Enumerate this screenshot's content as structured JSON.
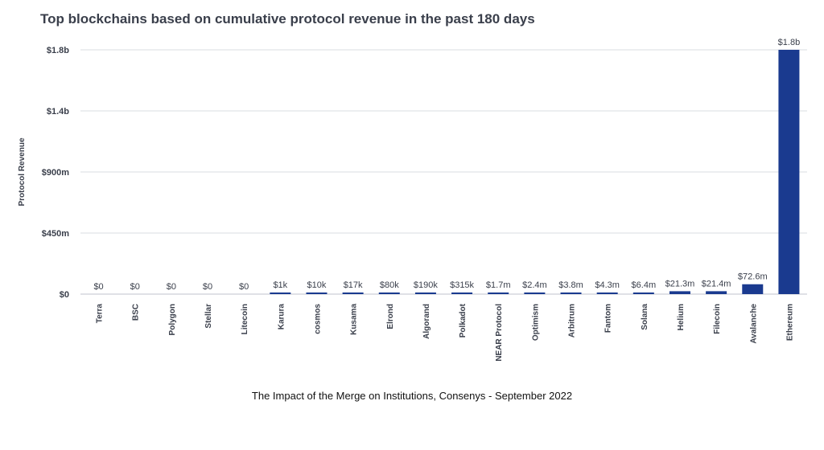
{
  "chart_data": {
    "type": "bar",
    "title": "Top blockchains based on cumulative protocol revenue in the past 180 days",
    "xlabel": "",
    "ylabel": "Protocol Revenue",
    "ylim": [
      0,
      1800000000
    ],
    "y_ticks": [
      {
        "value": 0,
        "label": "$0"
      },
      {
        "value": 450000000,
        "label": "$450m"
      },
      {
        "value": 900000000,
        "label": "$900m"
      },
      {
        "value": 1350000000,
        "label": "$1.4b"
      },
      {
        "value": 1800000000,
        "label": "$1.8b"
      }
    ],
    "grid": true,
    "legend": "none",
    "bar_color": "#1a3a8f",
    "categories": [
      "Terra",
      "BSC",
      "Polygon",
      "Stellar",
      "Litecoin",
      "Karura",
      "cosmos",
      "Kusama",
      "Elrond",
      "Algorand",
      "Polkadot",
      "NEAR Protocol",
      "Optimism",
      "Arbitrum",
      "Fantom",
      "Solana",
      "Helium",
      "Filecoin",
      "Avalanche",
      "Ethereum"
    ],
    "values": [
      0,
      0,
      0,
      0,
      0,
      1000,
      10000,
      17000,
      80000,
      190000,
      315000,
      1700000,
      2400000,
      3800000,
      4300000,
      6400000,
      21300000,
      21400000,
      72600000,
      1800000000
    ],
    "data_labels": [
      "$0",
      "$0",
      "$0",
      "$0",
      "$0",
      "$1k",
      "$10k",
      "$17k",
      "$80k",
      "$190k",
      "$315k",
      "$1.7m",
      "$2.4m",
      "$3.8m",
      "$4.3m",
      "$6.4m",
      "$21.3m",
      "$21.4m",
      "$72.6m",
      "$1.8b"
    ]
  },
  "caption": "The Impact of the Merge on Institutions, Consenys - September 2022"
}
